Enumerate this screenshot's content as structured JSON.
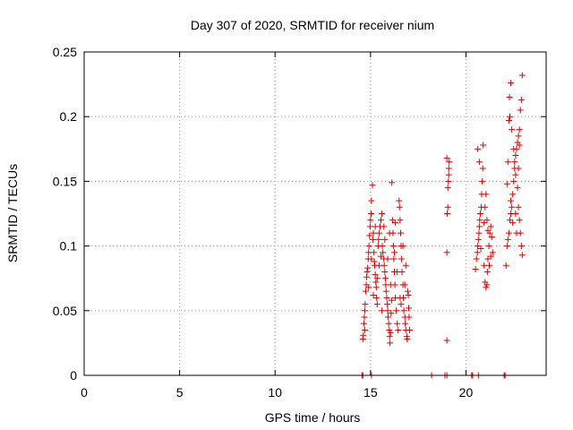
{
  "chart_data": {
    "type": "scatter",
    "title": "Day 307 of 2020, SRMTID for receiver nium",
    "xlabel": "GPS time / hours",
    "ylabel": "SRMTID / TECUs",
    "xlim": [
      0,
      24.2
    ],
    "ylim": [
      0,
      0.25
    ],
    "x_ticks": [
      0,
      5,
      10,
      15,
      20
    ],
    "x_tick_labels": [
      "0",
      "5",
      "10",
      "15",
      "20"
    ],
    "y_ticks": [
      0,
      0.05,
      0.1,
      0.15,
      0.2,
      0.25
    ],
    "y_tick_labels": [
      "0",
      "0.05",
      "0.1",
      "0.15",
      "0.2",
      "0.25"
    ],
    "grid": true,
    "marker": "+",
    "series": [
      {
        "name": "SRMTID",
        "color": "#e00000",
        "points": [
          [
            14.6,
            0.028
          ],
          [
            14.62,
            0.031
          ],
          [
            14.65,
            0.04
          ],
          [
            14.68,
            0.045
          ],
          [
            14.7,
            0.05
          ],
          [
            14.72,
            0.055
          ],
          [
            14.75,
            0.065
          ],
          [
            14.78,
            0.07
          ],
          [
            14.8,
            0.076
          ],
          [
            14.82,
            0.08
          ],
          [
            14.85,
            0.083
          ],
          [
            14.88,
            0.09
          ],
          [
            14.9,
            0.095
          ],
          [
            14.92,
            0.1
          ],
          [
            14.95,
            0.108
          ],
          [
            14.98,
            0.115
          ],
          [
            15.0,
            0.12
          ],
          [
            15.03,
            0.125
          ],
          [
            15.05,
            0.135
          ],
          [
            15.1,
            0.147
          ],
          [
            15.12,
            0.105
          ],
          [
            15.15,
            0.11
          ],
          [
            15.18,
            0.095
          ],
          [
            15.2,
            0.088
          ],
          [
            15.22,
            0.085
          ],
          [
            15.25,
            0.078
          ],
          [
            15.28,
            0.072
          ],
          [
            15.3,
            0.068
          ],
          [
            15.32,
            0.06
          ],
          [
            15.35,
            0.055
          ],
          [
            15.4,
            0.1
          ],
          [
            15.42,
            0.105
          ],
          [
            15.45,
            0.11
          ],
          [
            15.5,
            0.115
          ],
          [
            15.55,
            0.12
          ],
          [
            15.6,
            0.125
          ],
          [
            15.62,
            0.1
          ],
          [
            15.65,
            0.095
          ],
          [
            15.7,
            0.09
          ],
          [
            15.72,
            0.085
          ],
          [
            15.75,
            0.08
          ],
          [
            15.78,
            0.075
          ],
          [
            15.8,
            0.07
          ],
          [
            15.82,
            0.065
          ],
          [
            15.85,
            0.06
          ],
          [
            15.88,
            0.055
          ],
          [
            15.9,
            0.05
          ],
          [
            15.92,
            0.045
          ],
          [
            15.95,
            0.04
          ],
          [
            15.98,
            0.035
          ],
          [
            16.0,
            0.03
          ],
          [
            16.02,
            0.025
          ],
          [
            16.05,
            0.033
          ],
          [
            16.08,
            0.048
          ],
          [
            16.1,
            0.058
          ],
          [
            16.12,
            0.149
          ],
          [
            16.15,
            0.12
          ],
          [
            16.18,
            0.11
          ],
          [
            16.2,
            0.1
          ],
          [
            16.22,
            0.09
          ],
          [
            16.25,
            0.08
          ],
          [
            16.28,
            0.07
          ],
          [
            16.3,
            0.06
          ],
          [
            16.35,
            0.05
          ],
          [
            16.4,
            0.04
          ],
          [
            16.45,
            0.035
          ],
          [
            16.5,
            0.135
          ],
          [
            16.52,
            0.13
          ],
          [
            16.55,
            0.12
          ],
          [
            16.58,
            0.11
          ],
          [
            16.6,
            0.1
          ],
          [
            16.62,
            0.09
          ],
          [
            16.65,
            0.08
          ],
          [
            16.7,
            0.07
          ],
          [
            16.72,
            0.06
          ],
          [
            16.75,
            0.05
          ],
          [
            16.8,
            0.045
          ],
          [
            16.82,
            0.04
          ],
          [
            16.85,
            0.035
          ],
          [
            16.9,
            0.03
          ],
          [
            16.92,
            0.028
          ],
          [
            16.95,
            0.065
          ],
          [
            16.98,
            0.062
          ],
          [
            17.0,
            0.052
          ],
          [
            17.02,
            0.045
          ],
          [
            17.05,
            0.035
          ],
          [
            14.7,
            0.035
          ],
          [
            14.9,
            0.068
          ],
          [
            15.05,
            0.09
          ],
          [
            15.25,
            0.115
          ],
          [
            15.45,
            0.085
          ],
          [
            15.6,
            0.05
          ],
          [
            15.75,
            0.105
          ],
          [
            15.9,
            0.09
          ],
          [
            16.05,
            0.07
          ],
          [
            16.25,
            0.095
          ],
          [
            16.4,
            0.08
          ],
          [
            16.55,
            0.06
          ],
          [
            16.7,
            0.1
          ],
          [
            16.85,
            0.085
          ],
          [
            15.15,
            0.062
          ],
          [
            15.35,
            0.075
          ],
          [
            15.55,
            0.092
          ],
          [
            15.7,
            0.115
          ],
          [
            16.0,
            0.11
          ],
          [
            16.3,
            0.118
          ],
          [
            16.6,
            0.055
          ],
          [
            16.8,
            0.07
          ],
          [
            19.0,
            0.027
          ],
          [
            19.0,
            0.095
          ],
          [
            19.02,
            0.125
          ],
          [
            19.05,
            0.13
          ],
          [
            19.05,
            0.145
          ],
          [
            19.08,
            0.15
          ],
          [
            19.1,
            0.155
          ],
          [
            19.1,
            0.16
          ],
          [
            19.12,
            0.165
          ],
          [
            19.0,
            0.168
          ],
          [
            20.5,
            0.082
          ],
          [
            20.55,
            0.09
          ],
          [
            20.6,
            0.095
          ],
          [
            20.62,
            0.1
          ],
          [
            20.65,
            0.105
          ],
          [
            20.68,
            0.11
          ],
          [
            20.7,
            0.115
          ],
          [
            20.72,
            0.12
          ],
          [
            20.75,
            0.125
          ],
          [
            20.8,
            0.13
          ],
          [
            20.82,
            0.14
          ],
          [
            20.85,
            0.15
          ],
          [
            20.88,
            0.16
          ],
          [
            20.9,
            0.178
          ],
          [
            20.62,
            0.175
          ],
          [
            20.7,
            0.165
          ],
          [
            20.95,
            0.085
          ],
          [
            21.0,
            0.072
          ],
          [
            21.05,
            0.068
          ],
          [
            21.1,
            0.07
          ],
          [
            21.12,
            0.08
          ],
          [
            21.15,
            0.09
          ],
          [
            21.2,
            0.1
          ],
          [
            21.25,
            0.11
          ],
          [
            21.3,
            0.115
          ],
          [
            21.35,
            0.107
          ],
          [
            21.4,
            0.095
          ],
          [
            21.0,
            0.13
          ],
          [
            21.05,
            0.14
          ],
          [
            21.1,
            0.12
          ],
          [
            21.15,
            0.112
          ],
          [
            20.78,
            0.098
          ],
          [
            20.95,
            0.118
          ],
          [
            21.22,
            0.085
          ],
          [
            21.3,
            0.092
          ],
          [
            22.1,
            0.085
          ],
          [
            22.15,
            0.1
          ],
          [
            22.2,
            0.105
          ],
          [
            22.25,
            0.11
          ],
          [
            22.3,
            0.12
          ],
          [
            22.35,
            0.125
          ],
          [
            22.4,
            0.13
          ],
          [
            22.45,
            0.14
          ],
          [
            22.5,
            0.15
          ],
          [
            22.55,
            0.16
          ],
          [
            22.6,
            0.17
          ],
          [
            22.65,
            0.175
          ],
          [
            22.7,
            0.18
          ],
          [
            22.75,
            0.185
          ],
          [
            22.8,
            0.19
          ],
          [
            22.25,
            0.197
          ],
          [
            22.3,
            0.2
          ],
          [
            22.35,
            0.226
          ],
          [
            22.28,
            0.215
          ],
          [
            22.4,
            0.19
          ],
          [
            22.5,
            0.175
          ],
          [
            22.55,
            0.165
          ],
          [
            22.6,
            0.155
          ],
          [
            22.7,
            0.145
          ],
          [
            22.75,
            0.13
          ],
          [
            22.8,
            0.12
          ],
          [
            22.85,
            0.11
          ],
          [
            22.9,
            0.1
          ],
          [
            22.95,
            0.093
          ],
          [
            22.9,
            0.213
          ],
          [
            22.95,
            0.232
          ],
          [
            22.85,
            0.205
          ],
          [
            22.2,
            0.165
          ],
          [
            22.15,
            0.148
          ],
          [
            22.45,
            0.118
          ],
          [
            22.65,
            0.11
          ],
          [
            22.35,
            0.135
          ],
          [
            22.6,
            0.125
          ],
          [
            22.75,
            0.16
          ],
          [
            22.8,
            0.178
          ],
          [
            14.55,
            0.0
          ],
          [
            14.6,
            0.0
          ],
          [
            15.05,
            0.0
          ],
          [
            18.2,
            0.0
          ],
          [
            18.9,
            0.0
          ],
          [
            19.0,
            0.0
          ],
          [
            20.3,
            0.0
          ],
          [
            20.35,
            0.0
          ],
          [
            20.65,
            0.0
          ],
          [
            22.0,
            0.0
          ],
          [
            22.05,
            0.0
          ]
        ]
      }
    ]
  }
}
